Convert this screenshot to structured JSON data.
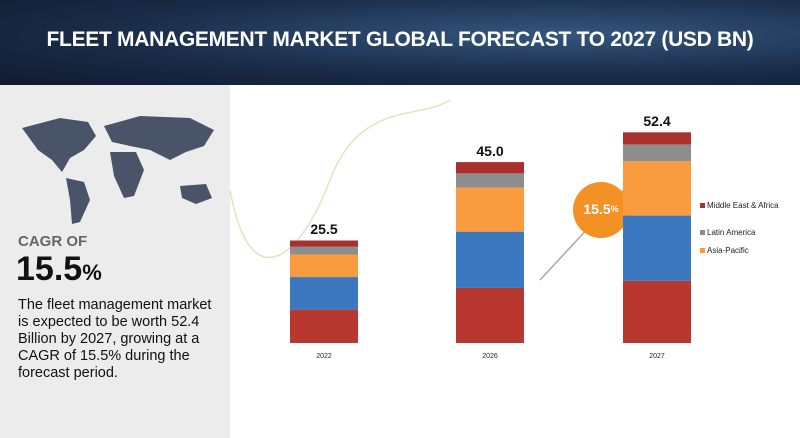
{
  "header": {
    "title": "FLEET MANAGEMENT MARKET GLOBAL FORECAST TO 2027 (USD BN)"
  },
  "summary": {
    "cagr_label": "CAGR OF",
    "cagr_value": "15.5",
    "cagr_unit": "%",
    "description": "The fleet management market is expected to be worth 52.4 Billion by 2027, growing at a CAGR of 15.5% during the forecast period."
  },
  "chart_data": {
    "type": "stacked_bar",
    "categories": [
      "2022",
      "2026",
      "2027"
    ],
    "series": [
      {
        "color": "#b8372f",
        "values": [
          8.3,
          13.7,
          15.5
        ]
      },
      {
        "color": "#3b78c0",
        "values": [
          8.1,
          14.0,
          16.2
        ]
      },
      {
        "name": "Asia-Pacific",
        "color": "#f99c40",
        "values": [
          5.6,
          11.0,
          13.5
        ]
      },
      {
        "name": "Latin America",
        "color": "#8d8d8d",
        "values": [
          2.0,
          3.5,
          4.2
        ]
      },
      {
        "name": "Middle East & Africa",
        "color": "#a9302d",
        "values": [
          1.5,
          2.8,
          3.0
        ]
      }
    ],
    "totals": [
      25.5,
      45.0,
      52.4
    ],
    "total_labels": [
      "25.5",
      "45.0",
      "52.4"
    ],
    "legend": "right"
  }
}
